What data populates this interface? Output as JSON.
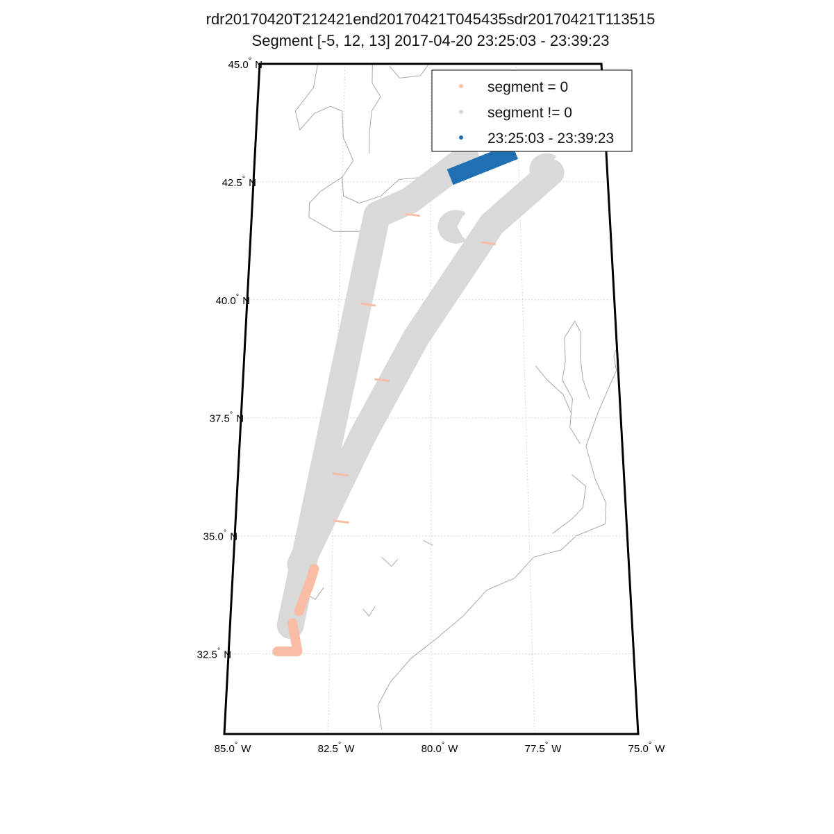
{
  "title": {
    "line1": "rdr20170420T212421end20170421T045435sdr20170421T113515",
    "line2": "Segment [-5, 12, 13] 2017-04-20 23:25:03 - 23:39:23"
  },
  "colors": {
    "segment_zero": "#f9bca4",
    "segment_nonzero": "#d9d9d9",
    "highlight": "#1f6fb2",
    "coastline": "#a8a8a8",
    "grid": "#c8c8c8",
    "frame": "#000000"
  },
  "chart_data": {
    "type": "map",
    "projection": "conic",
    "lon_range": [
      -85.0,
      -75.0
    ],
    "lat_range": [
      30.8,
      45.0
    ],
    "grid": true,
    "lat_ticks": [
      {
        "value": 45.0,
        "label": "45.0",
        "hemi": "N"
      },
      {
        "value": 42.5,
        "label": "42.5",
        "hemi": "N"
      },
      {
        "value": 40.0,
        "label": "40.0",
        "hemi": "N"
      },
      {
        "value": 37.5,
        "label": "37.5",
        "hemi": "N"
      },
      {
        "value": 35.0,
        "label": "35.0",
        "hemi": "N"
      },
      {
        "value": 32.5,
        "label": "32.5",
        "hemi": "N"
      }
    ],
    "lon_ticks": [
      {
        "value": -85.0,
        "label": "85.0",
        "hemi": "W"
      },
      {
        "value": -82.5,
        "label": "82.5",
        "hemi": "W"
      },
      {
        "value": -80.0,
        "label": "80.0",
        "hemi": "W"
      },
      {
        "value": -77.5,
        "label": "77.5",
        "hemi": "W"
      },
      {
        "value": -75.0,
        "label": "75.0",
        "hemi": "W"
      }
    ],
    "legend_position": "top-right",
    "legend": [
      {
        "label": "segment = 0",
        "series": "segment_zero"
      },
      {
        "label": "segment != 0",
        "series": "segment_nonzero"
      },
      {
        "label": "23:25:03 - 23:39:23",
        "series": "highlight"
      }
    ],
    "tracks": {
      "segment_nonzero": [
        {
          "width_deg": 0.55,
          "path": [
            [
              -83.5,
              33.1
            ],
            [
              -81.5,
              41.8
            ],
            [
              -80.6,
              42.1
            ],
            [
              -79.0,
              43.0
            ]
          ]
        },
        {
          "width_deg": 0.55,
          "path": [
            [
              -83.3,
              34.4
            ],
            [
              -81.8,
              37.1
            ],
            [
              -80.4,
              39.2
            ],
            [
              -78.3,
              41.6
            ],
            [
              -76.6,
              42.7
            ]
          ]
        }
      ],
      "segment_zero": [
        {
          "path": [
            [
              -83.45,
              33.15
            ],
            [
              -83.3,
              32.55
            ],
            [
              -83.8,
              32.55
            ]
          ]
        },
        {
          "path": [
            [
              -83.3,
              33.4
            ],
            [
              -83.05,
              34.0
            ],
            [
              -82.95,
              34.3
            ]
          ]
        }
      ],
      "highlight": [
        {
          "path": [
            [
              -79.45,
              42.6
            ],
            [
              -77.6,
              43.15
            ]
          ]
        }
      ]
    }
  }
}
